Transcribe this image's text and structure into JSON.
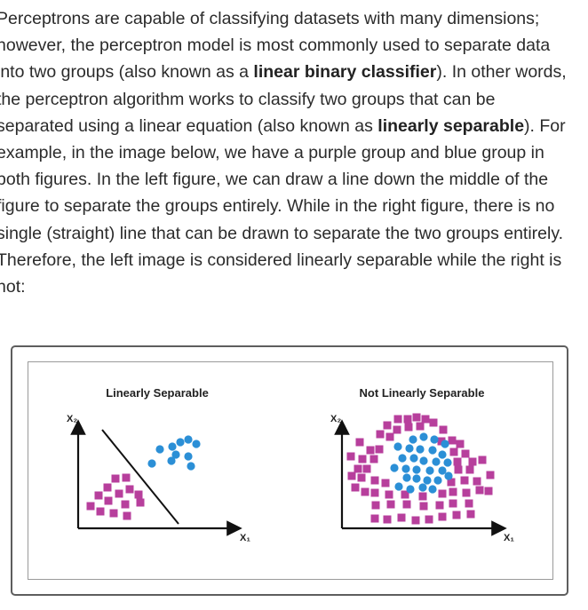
{
  "paragraph": {
    "lines": [
      [
        "Perceptrons are capable of classifying datasets with many dimensions;"
      ],
      [
        "however, the perceptron model is most commonly used to separate data"
      ],
      [
        "into two groups (also known as a ",
        {
          "b": "linear binary classifier"
        },
        "). In other words,"
      ],
      [
        "the perceptron algorithm works to classify two groups that can be"
      ],
      [
        "separated using a linear equation (also known as ",
        {
          "b": "linearly separable"
        },
        "). For"
      ],
      [
        "example, in the image below, we have a purple group and blue group in"
      ],
      [
        "both figures. In the left figure, we can draw a line down the middle of the"
      ],
      [
        "figure to separate the groups entirely. While in the right figure, there is no"
      ],
      [
        "single (straight) line that can be drawn to separate the two groups entirely."
      ],
      [
        "Therefore, the left image is considered linearly separable while the right is"
      ],
      [
        "not:"
      ]
    ]
  },
  "figure": {
    "colors": {
      "purple": "#b73f9c",
      "blue": "#2b8fd6",
      "axis": "#111111"
    },
    "left_panel": {
      "title": "Linearly Separable",
      "y_axis_label": "X₂",
      "x_axis_label": "X₁"
    },
    "right_panel": {
      "title": "Not Linearly Separable",
      "y_axis_label": "X₂",
      "x_axis_label": "X₁"
    }
  }
}
